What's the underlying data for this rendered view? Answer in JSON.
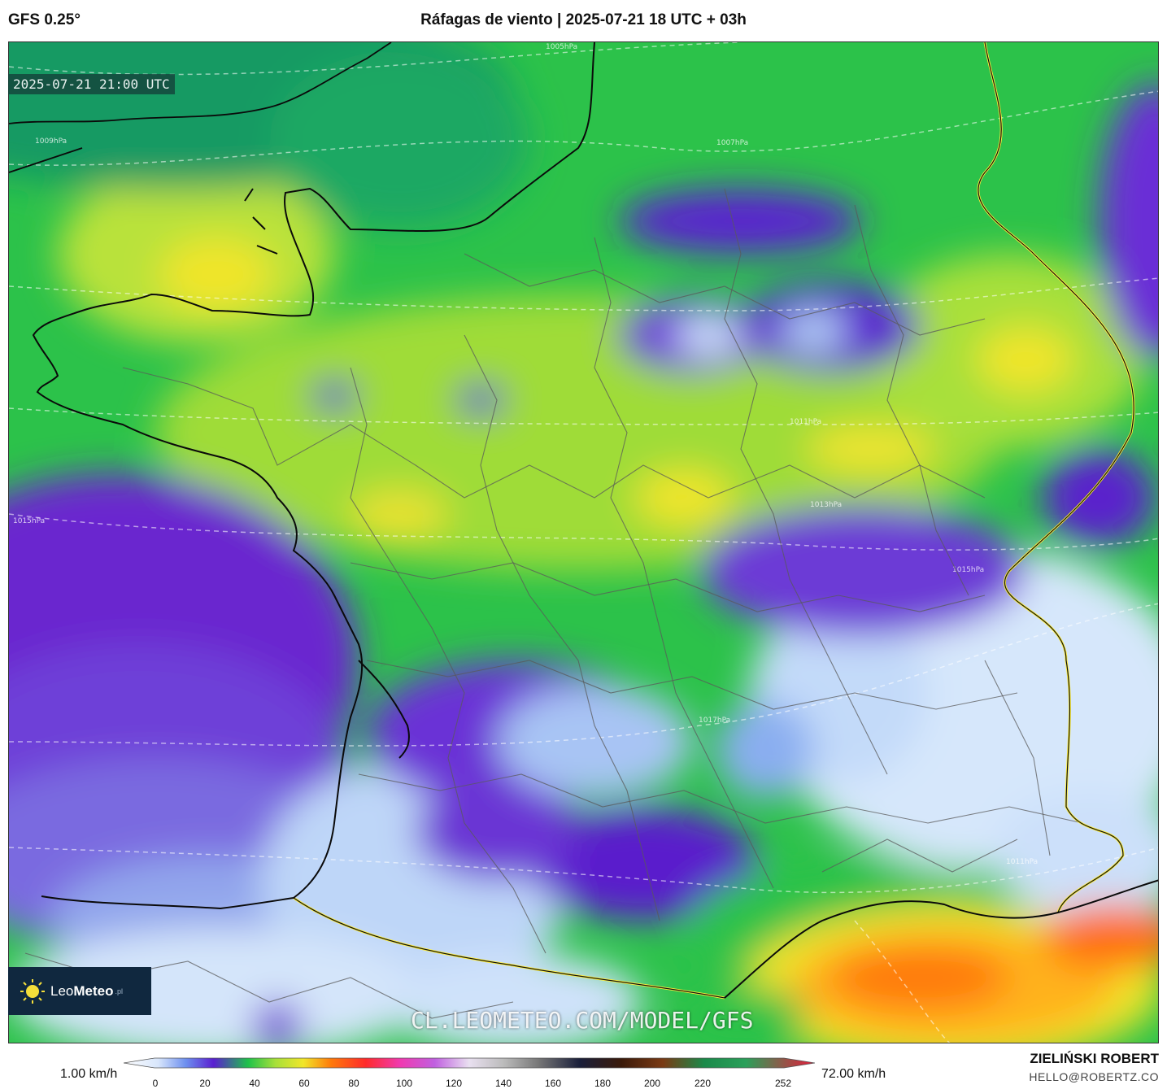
{
  "header": {
    "model": "GFS 0.25°",
    "title": "Ráfagas de viento | 2025-07-21 18 UTC + 03h"
  },
  "map": {
    "valid_time": "2025-07-21 21:00 UTC",
    "isobar_labels": [
      "1005hPa",
      "1007hPa",
      "1009hPa",
      "1011hPa",
      "1013hPa",
      "1015hPa",
      "1015hPa",
      "1017hPa",
      "1011hPa"
    ],
    "watermark": "CL.LEOMETEO.COM/MODEL/GFS",
    "colors": {
      "calm": "#dfeefc",
      "light_blue": "#7fb3f2",
      "purple": "#5a1fd0",
      "green": "#1fc24a",
      "lime": "#a8e03a",
      "yellow": "#f1e62a",
      "orange": "#ff7a0a"
    }
  },
  "logo": {
    "icon": "sun-icon",
    "name_light": "Leo",
    "name_bold": "Meteo",
    "suffix": ".pl"
  },
  "legend": {
    "min_label": "1.00 km/h",
    "max_label": "72.00 km/h",
    "ticks": [
      "0",
      "20",
      "40",
      "60",
      "80",
      "100",
      "120",
      "140",
      "160",
      "180",
      "200",
      "220",
      "252"
    ]
  },
  "credits": {
    "author": "ZIELIŃSKI ROBERT",
    "email": "HELLO@ROBERTZ.CO"
  }
}
